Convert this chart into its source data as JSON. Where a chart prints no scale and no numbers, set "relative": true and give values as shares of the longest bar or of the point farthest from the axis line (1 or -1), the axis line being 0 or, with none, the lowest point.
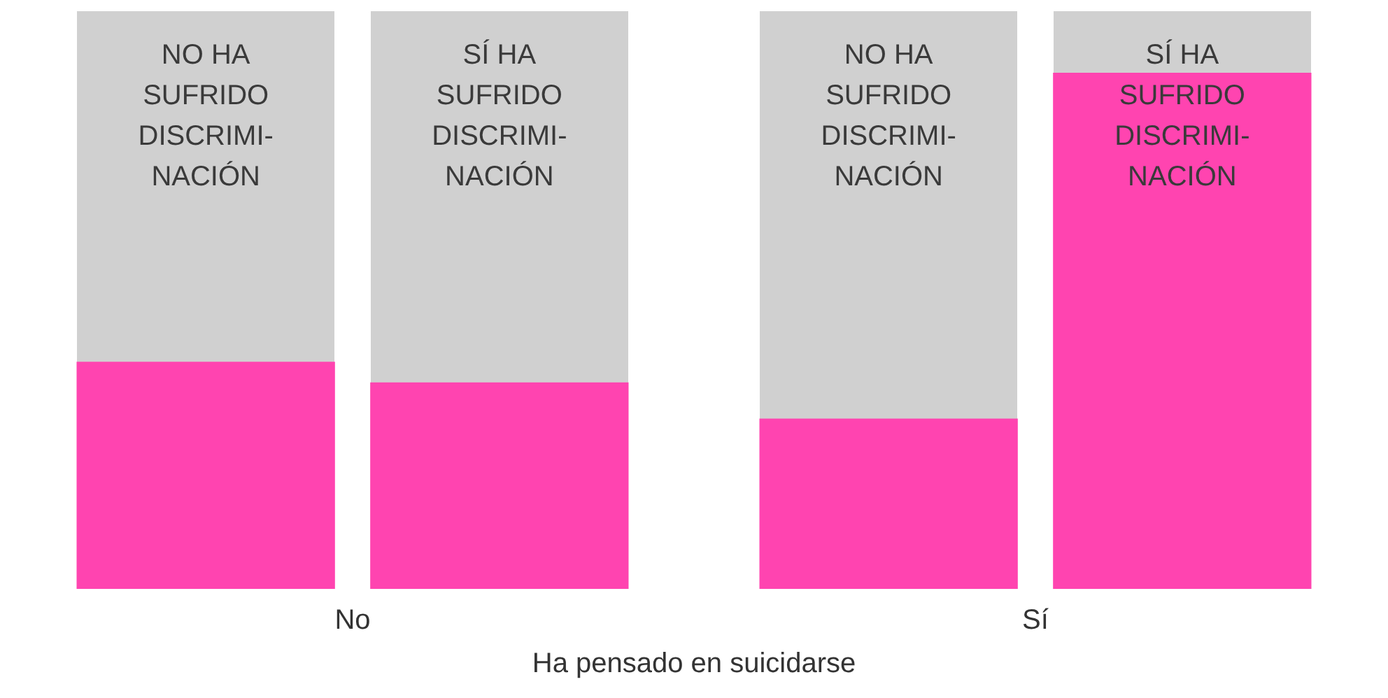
{
  "chart_data": {
    "type": "bar",
    "relative": true,
    "xlabel": "Ha pensado en suicidarse",
    "categories": [
      "No",
      "Sí"
    ],
    "legend": false,
    "grid": false,
    "series": [
      {
        "color": "#ff44b0",
        "values": [
          0.44,
          0.33
        ]
      },
      {
        "color": "#ff44b0",
        "values": [
          0.4,
          1
        ]
      }
    ],
    "annotations": [
      "NO HA SUFRIDO DISCRIMI-NACIÓN",
      "SÍ HA SUFRIDO DISCRIMI-NACIÓN",
      "NO HA SUFRIDO DISCRIMI-NACIÓN",
      "SÍ HA SUFRIDO DISCRIMI-NACIÓN"
    ]
  }
}
